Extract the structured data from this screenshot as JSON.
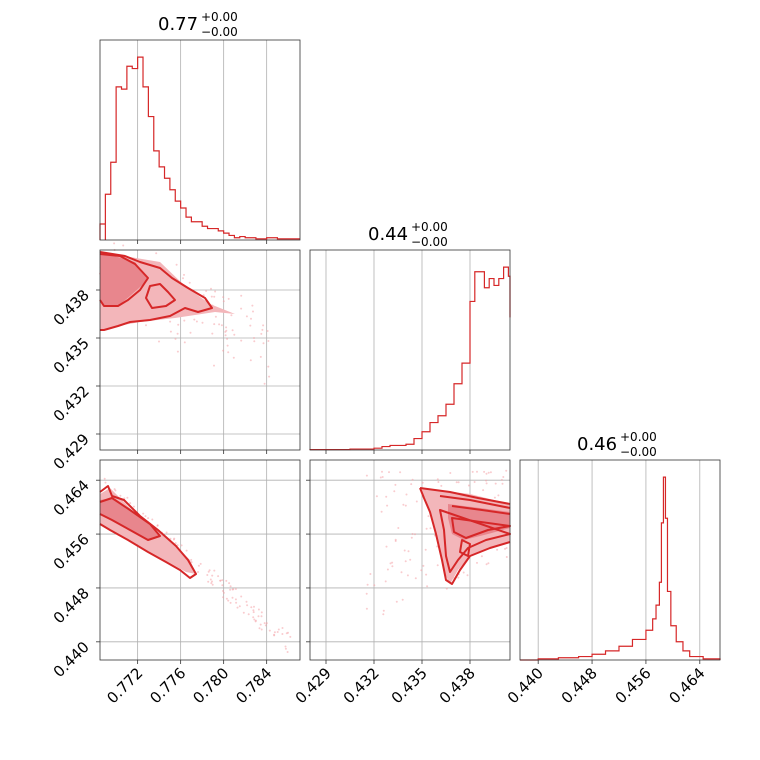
{
  "chart_data": [
    {
      "type": "histogram",
      "panel": "p00",
      "title": {
        "value": "0.77",
        "upper": "+0.00",
        "lower": "−0.00"
      },
      "xlim": [
        0.7685,
        0.7871
      ],
      "xticks": [
        0.772,
        0.776,
        0.78,
        0.784
      ],
      "bins": [
        [
          0.7685,
          0.7,
          0.769
        ],
        [
          0.769,
          0.0,
          0.0
        ],
        [
          0.769,
          2.0,
          0.7695
        ],
        [
          0.7695,
          3.4,
          0.77
        ],
        [
          0.77,
          6.7,
          0.7705
        ],
        [
          0.7705,
          6.6,
          0.771
        ],
        [
          0.771,
          7.6,
          0.7715
        ],
        [
          0.7715,
          7.5,
          0.772
        ],
        [
          0.772,
          8.0,
          0.7725
        ],
        [
          0.7725,
          6.7,
          0.773
        ],
        [
          0.773,
          5.4,
          0.7735
        ],
        [
          0.7735,
          3.9,
          0.774
        ],
        [
          0.774,
          3.2,
          0.7745
        ],
        [
          0.7745,
          2.7,
          0.775
        ],
        [
          0.775,
          2.2,
          0.7755
        ],
        [
          0.7755,
          1.7,
          0.776
        ],
        [
          0.776,
          1.4,
          0.7765
        ],
        [
          0.7765,
          1.0,
          0.777
        ],
        [
          0.777,
          0.8,
          0.7775
        ],
        [
          0.7775,
          0.8,
          0.778
        ],
        [
          0.778,
          0.6,
          0.7785
        ],
        [
          0.7785,
          0.5,
          0.779
        ],
        [
          0.779,
          0.5,
          0.7795
        ],
        [
          0.7795,
          0.4,
          0.78
        ],
        [
          0.78,
          0.3,
          0.7805
        ],
        [
          0.7805,
          0.2,
          0.781
        ],
        [
          0.781,
          0.1,
          0.7815
        ],
        [
          0.7815,
          0.15,
          0.782
        ],
        [
          0.782,
          0.1,
          0.7825
        ],
        [
          0.7825,
          0.1,
          0.783
        ],
        [
          0.783,
          0.05,
          0.784
        ],
        [
          0.784,
          0.1,
          0.785
        ],
        [
          0.785,
          0.05,
          0.786
        ],
        [
          0.786,
          0.05,
          0.7871
        ]
      ]
    },
    {
      "type": "histogram",
      "panel": "p11",
      "title": {
        "value": "0.44",
        "upper": "+0.00",
        "lower": "−0.00"
      },
      "xlim": [
        0.428,
        0.4405
      ],
      "xticks": [
        0.429,
        0.432,
        0.435,
        0.438
      ],
      "bins": [
        [
          0.428,
          0.02
        ],
        [
          0.4295,
          0.02
        ],
        [
          0.4305,
          0.04
        ],
        [
          0.4315,
          0.04
        ],
        [
          0.432,
          0.08
        ],
        [
          0.4325,
          0.15
        ],
        [
          0.433,
          0.2
        ],
        [
          0.4335,
          0.2
        ],
        [
          0.434,
          0.25
        ],
        [
          0.4345,
          0.5
        ],
        [
          0.435,
          0.8
        ],
        [
          0.4355,
          1.2
        ],
        [
          0.436,
          1.5
        ],
        [
          0.4365,
          2.0
        ],
        [
          0.437,
          2.9
        ],
        [
          0.4375,
          3.8
        ],
        [
          0.438,
          6.5
        ],
        [
          0.4383,
          7.8
        ],
        [
          0.4386,
          7.8
        ],
        [
          0.4389,
          7.1
        ],
        [
          0.4392,
          7.5
        ],
        [
          0.4395,
          7.2
        ],
        [
          0.4398,
          7.5
        ],
        [
          0.4401,
          8.0
        ],
        [
          0.4404,
          7.6
        ],
        [
          0.4405,
          5.8
        ]
      ]
    },
    {
      "type": "histogram",
      "panel": "p22",
      "title": {
        "value": "0.46",
        "upper": "+0.00",
        "lower": "−0.00"
      },
      "xlim": [
        0.4373,
        0.467
      ],
      "xticks": [
        0.44,
        0.448,
        0.456,
        0.464
      ],
      "bins": [
        [
          0.4373,
          0.0
        ],
        [
          0.44,
          0.05
        ],
        [
          0.443,
          0.1
        ],
        [
          0.446,
          0.15
        ],
        [
          0.448,
          0.25
        ],
        [
          0.45,
          0.4
        ],
        [
          0.452,
          0.6
        ],
        [
          0.454,
          0.9
        ],
        [
          0.456,
          1.3
        ],
        [
          0.457,
          1.8
        ],
        [
          0.4575,
          2.4
        ],
        [
          0.458,
          3.4
        ],
        [
          0.4583,
          6.0
        ],
        [
          0.4586,
          8.0
        ],
        [
          0.4589,
          6.2
        ],
        [
          0.4592,
          3.0
        ],
        [
          0.4597,
          1.5
        ],
        [
          0.4605,
          0.8
        ],
        [
          0.4615,
          0.4
        ],
        [
          0.4625,
          0.15
        ],
        [
          0.4645,
          0.05
        ],
        [
          0.467,
          0.0
        ]
      ]
    },
    {
      "type": "contour",
      "panel": "p10",
      "xlim": [
        0.7685,
        0.7871
      ],
      "ylim": [
        0.428,
        0.4405
      ],
      "yticks": [
        0.429,
        0.432,
        0.435,
        0.438
      ],
      "yticklabels": [
        "0.429",
        "0.432",
        "0.435",
        "0.438"
      ]
    },
    {
      "type": "contour",
      "panel": "p20",
      "xlim": [
        0.7685,
        0.7871
      ],
      "ylim": [
        0.4373,
        0.467
      ],
      "xticks": [
        0.772,
        0.776,
        0.78,
        0.784
      ],
      "xticklabels": [
        "0.772",
        "0.776",
        "0.780",
        "0.784"
      ],
      "yticks": [
        0.44,
        0.448,
        0.456,
        0.464
      ],
      "yticklabels": [
        "0.440",
        "0.448",
        "0.456",
        "0.464"
      ]
    },
    {
      "type": "contour",
      "panel": "p21",
      "xlim": [
        0.428,
        0.4405
      ],
      "ylim": [
        0.4373,
        0.467
      ],
      "xticks": [
        0.429,
        0.432,
        0.435,
        0.438
      ],
      "xticklabels": [
        "0.429",
        "0.432",
        "0.435",
        "0.438"
      ]
    },
    {
      "type": "histogram-axis",
      "panel": "p22-axis",
      "xticklabels": [
        "0.440",
        "0.448",
        "0.456",
        "0.464"
      ]
    }
  ],
  "colors": {
    "series": "#d62728",
    "fill_outer": "#f3b6ba",
    "fill_inner": "#e8868d",
    "scatter": "#f4a3a8"
  }
}
